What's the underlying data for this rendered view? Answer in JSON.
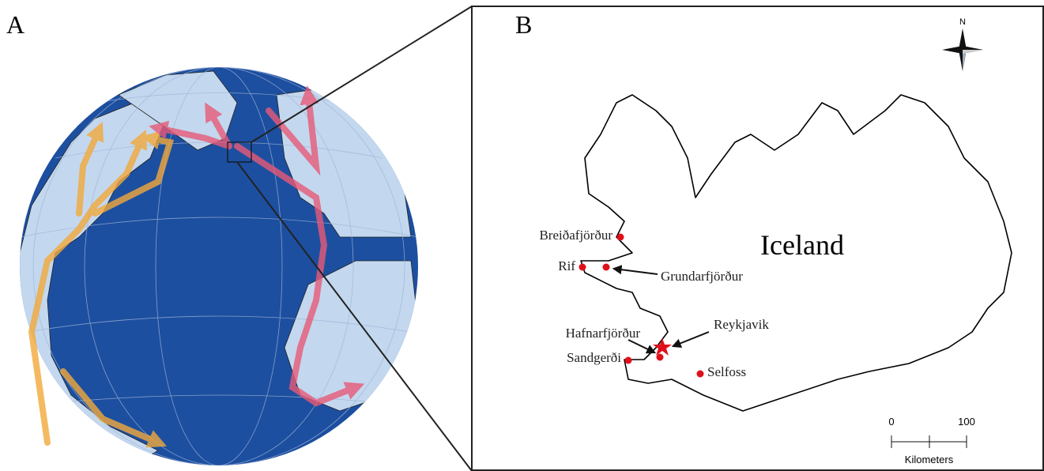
{
  "panels": {
    "a": {
      "label": "A"
    },
    "b": {
      "label": "B",
      "country": "Iceland",
      "places": [
        {
          "name": "Breiðafjörður"
        },
        {
          "name": "Rif"
        },
        {
          "name": "Grundarfjörður"
        },
        {
          "name": "Reykjavik"
        },
        {
          "name": "Hafnarfjörður"
        },
        {
          "name": "Sandgerði"
        },
        {
          "name": "Selfoss"
        }
      ],
      "compass": "N",
      "scale_bar": {
        "ticks": [
          0,
          100
        ],
        "unit": "Kilometers"
      }
    }
  }
}
